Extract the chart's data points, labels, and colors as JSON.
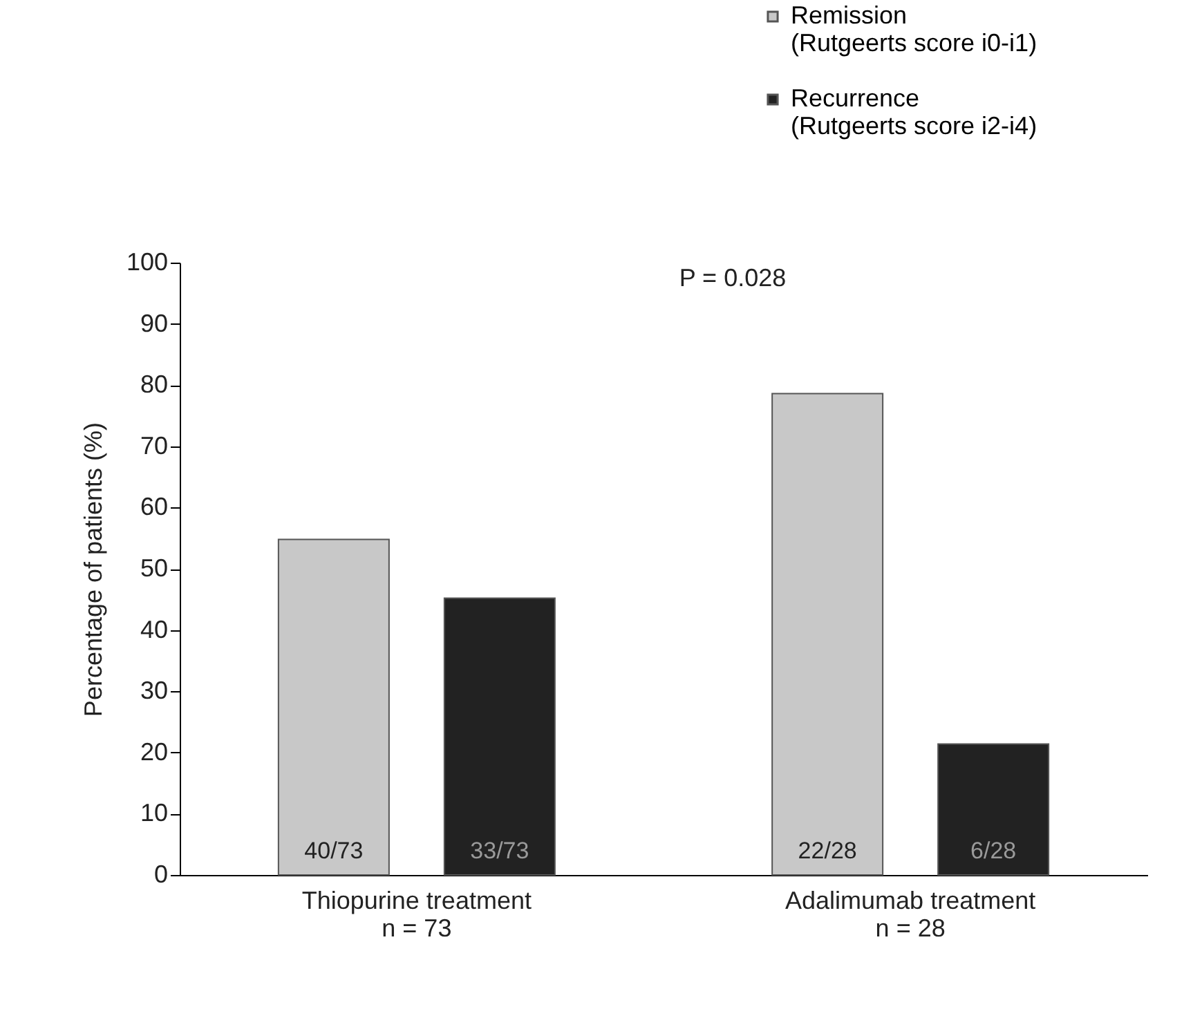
{
  "chart_data": {
    "type": "bar",
    "ylabel": "Percentage of patients (%)",
    "categories": [
      "Thiopurine treatment\nn = 73",
      "Adalimumab treatment\nn = 28"
    ],
    "series": [
      {
        "name": "Remission\n(Rutgeerts score i0-i1)",
        "color": "#c8c8c8",
        "values": [
          54.8,
          78.6
        ],
        "value_labels": [
          "40/73",
          "22/28"
        ]
      },
      {
        "name": "Recurrence\n(Rutgeerts score i2-i4)",
        "color": "#222222",
        "values": [
          45.2,
          21.4
        ],
        "value_labels": [
          "33/73",
          "6/28"
        ]
      }
    ],
    "ylim": [
      0,
      100
    ],
    "yticks": [
      0,
      10,
      20,
      30,
      40,
      50,
      60,
      70,
      80,
      90,
      100
    ],
    "annotations": [
      "P = 0.028"
    ],
    "grid": false,
    "legend": "top right"
  }
}
